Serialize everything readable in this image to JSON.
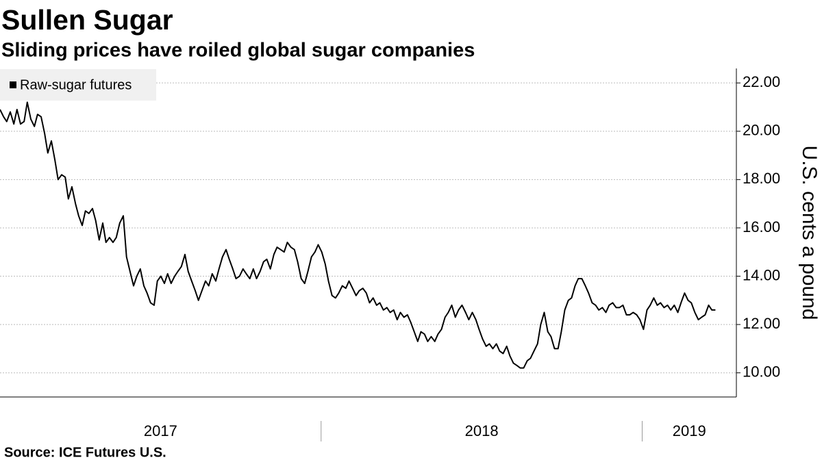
{
  "chart_data": {
    "type": "line",
    "title": "Sullen Sugar",
    "subtitle": "Sliding prices have roiled global sugar companies",
    "source": "Source: ICE Futures U.S.",
    "y_axis_label": "U.S. cents a pound",
    "xlim": [
      2017,
      2019.24
    ],
    "xticks": [
      2017,
      2018,
      2019
    ],
    "ylim": [
      9,
      22.6
    ],
    "yticks": [
      {
        "value": 10,
        "label": "10.00"
      },
      {
        "value": 12,
        "label": "12.00"
      },
      {
        "value": 14,
        "label": "14.00"
      },
      {
        "value": 16,
        "label": "16.00"
      },
      {
        "value": 18,
        "label": "18.00"
      },
      {
        "value": 20,
        "label": "20.00"
      },
      {
        "value": 22,
        "label": "22.00"
      }
    ],
    "grid": true,
    "legend": "top-left",
    "x": [
      2017.0,
      2017.011,
      2017.021,
      2017.032,
      2017.043,
      2017.053,
      2017.064,
      2017.075,
      2017.085,
      2017.096,
      2017.107,
      2017.117,
      2017.128,
      2017.139,
      2017.149,
      2017.16,
      2017.171,
      2017.181,
      2017.192,
      2017.203,
      2017.213,
      2017.224,
      2017.235,
      2017.245,
      2017.256,
      2017.266,
      2017.277,
      2017.288,
      2017.298,
      2017.309,
      2017.32,
      2017.33,
      2017.341,
      2017.352,
      2017.362,
      2017.373,
      2017.384,
      2017.394,
      2017.405,
      2017.416,
      2017.426,
      2017.437,
      2017.448,
      2017.458,
      2017.469,
      2017.48,
      2017.49,
      2017.501,
      2017.512,
      2017.522,
      2017.533,
      2017.544,
      2017.554,
      2017.565,
      2017.576,
      2017.586,
      2017.597,
      2017.608,
      2017.618,
      2017.629,
      2017.64,
      2017.65,
      2017.661,
      2017.672,
      2017.682,
      2017.693,
      2017.704,
      2017.714,
      2017.725,
      2017.735,
      2017.746,
      2017.757,
      2017.767,
      2017.778,
      2017.789,
      2017.799,
      2017.81,
      2017.821,
      2017.831,
      2017.842,
      2017.853,
      2017.863,
      2017.874,
      2017.885,
      2017.895,
      2017.906,
      2017.917,
      2017.927,
      2017.938,
      2017.949,
      2017.959,
      2017.97,
      2017.981,
      2017.991,
      2018.002,
      2018.013,
      2018.023,
      2018.034,
      2018.045,
      2018.055,
      2018.066,
      2018.077,
      2018.087,
      2018.098,
      2018.109,
      2018.119,
      2018.13,
      2018.141,
      2018.151,
      2018.162,
      2018.173,
      2018.183,
      2018.194,
      2018.205,
      2018.215,
      2018.226,
      2018.237,
      2018.247,
      2018.258,
      2018.269,
      2018.279,
      2018.29,
      2018.301,
      2018.311,
      2018.322,
      2018.332,
      2018.343,
      2018.354,
      2018.364,
      2018.375,
      2018.386,
      2018.396,
      2018.407,
      2018.418,
      2018.428,
      2018.439,
      2018.45,
      2018.46,
      2018.471,
      2018.482,
      2018.492,
      2018.503,
      2018.514,
      2018.524,
      2018.535,
      2018.546,
      2018.556,
      2018.567,
      2018.578,
      2018.588,
      2018.599,
      2018.61,
      2018.62,
      2018.631,
      2018.642,
      2018.652,
      2018.663,
      2018.674,
      2018.684,
      2018.695,
      2018.706,
      2018.716,
      2018.727,
      2018.738,
      2018.748,
      2018.759,
      2018.77,
      2018.78,
      2018.791,
      2018.801,
      2018.812,
      2018.823,
      2018.833,
      2018.844,
      2018.855,
      2018.865,
      2018.876,
      2018.887,
      2018.897,
      2018.908,
      2018.919,
      2018.929,
      2018.94,
      2018.951,
      2018.961,
      2018.972,
      2018.983,
      2018.993,
      2019.004,
      2019.015,
      2019.025,
      2019.036,
      2019.047,
      2019.057,
      2019.068,
      2019.079,
      2019.089,
      2019.1,
      2019.111,
      2019.121,
      2019.132,
      2019.143,
      2019.153,
      2019.164,
      2019.175,
      2019.185,
      2019.196,
      2019.207,
      2019.217,
      2019.228
    ],
    "series": [
      {
        "name": "Raw-sugar futures",
        "color": "#000000",
        "values": [
          20.9,
          20.6,
          20.4,
          20.8,
          20.3,
          20.9,
          20.3,
          20.4,
          21.2,
          20.5,
          20.2,
          20.7,
          20.6,
          19.9,
          19.1,
          19.6,
          18.8,
          18.0,
          18.2,
          18.1,
          17.2,
          17.7,
          17.0,
          16.5,
          16.1,
          16.7,
          16.6,
          16.8,
          16.3,
          15.5,
          16.2,
          15.4,
          15.6,
          15.4,
          15.6,
          16.2,
          16.5,
          14.8,
          14.2,
          13.6,
          14.0,
          14.3,
          13.6,
          13.3,
          12.9,
          12.8,
          13.8,
          14.0,
          13.7,
          14.1,
          13.7,
          14.0,
          14.2,
          14.4,
          14.9,
          14.2,
          13.8,
          13.4,
          13.0,
          13.4,
          13.8,
          13.6,
          14.1,
          13.8,
          14.3,
          14.8,
          15.1,
          14.7,
          14.3,
          13.9,
          14.0,
          14.3,
          14.1,
          13.9,
          14.3,
          13.9,
          14.2,
          14.6,
          14.7,
          14.3,
          14.9,
          15.2,
          15.1,
          15.0,
          15.4,
          15.2,
          15.1,
          14.6,
          13.9,
          13.7,
          14.2,
          14.8,
          15.0,
          15.3,
          15.0,
          14.5,
          13.8,
          13.2,
          13.1,
          13.3,
          13.6,
          13.5,
          13.8,
          13.5,
          13.2,
          13.4,
          13.5,
          13.3,
          12.9,
          13.1,
          12.8,
          12.9,
          12.6,
          12.7,
          12.5,
          12.6,
          12.2,
          12.5,
          12.3,
          12.4,
          12.1,
          11.7,
          11.3,
          11.7,
          11.6,
          11.3,
          11.5,
          11.3,
          11.6,
          11.8,
          12.3,
          12.5,
          12.8,
          12.3,
          12.6,
          12.8,
          12.5,
          12.2,
          12.5,
          12.2,
          11.8,
          11.4,
          11.1,
          11.2,
          11.0,
          11.2,
          10.9,
          10.8,
          11.1,
          10.7,
          10.4,
          10.3,
          10.2,
          10.2,
          10.5,
          10.6,
          10.9,
          11.2,
          12.0,
          12.5,
          11.7,
          11.5,
          11.0,
          11.0,
          11.7,
          12.6,
          13.0,
          13.1,
          13.6,
          13.9,
          13.9,
          13.6,
          13.3,
          12.9,
          12.8,
          12.6,
          12.7,
          12.5,
          12.8,
          12.9,
          12.7,
          12.7,
          12.8,
          12.4,
          12.4,
          12.5,
          12.4,
          12.2,
          11.8,
          12.6,
          12.8,
          13.1,
          12.8,
          12.9,
          12.7,
          12.8,
          12.6,
          12.8,
          12.5,
          12.9,
          13.3,
          13.0,
          12.9,
          12.5,
          12.2,
          12.3,
          12.4,
          12.8,
          12.6,
          12.6
        ]
      }
    ]
  }
}
